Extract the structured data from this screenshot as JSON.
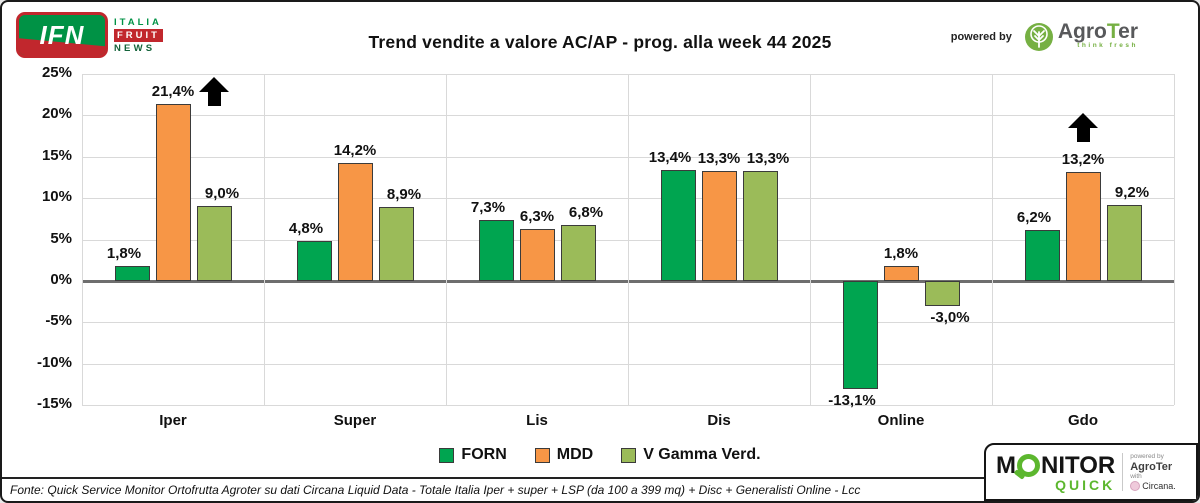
{
  "header": {
    "title": "Trend vendite a valore AC/AP - prog. alla week 44 2025",
    "ifn_logo": {
      "abbr": "IFN",
      "line1": "ITALIA",
      "line2": "FRUIT",
      "line3": "NEWS"
    },
    "powered_by": "powered by",
    "agroter": {
      "name_part1": "Agro",
      "name_t": "T",
      "name_part2": "er",
      "tagline": "think fresh",
      "icon": "tree-icon"
    }
  },
  "chart_data": {
    "type": "bar",
    "title": "Trend vendite a valore AC/AP - prog. alla week 44 2025",
    "categories": [
      "Iper",
      "Super",
      "Lis",
      "Dis",
      "Online",
      "Gdo"
    ],
    "series": [
      {
        "name": "FORN",
        "color": "#00A550",
        "values": [
          1.8,
          4.8,
          7.3,
          13.4,
          -13.1,
          6.2
        ]
      },
      {
        "name": "MDD",
        "color": "#F79646",
        "values": [
          21.4,
          14.2,
          6.3,
          13.3,
          1.8,
          13.2
        ]
      },
      {
        "name": "V Gamma Verd.",
        "color": "#9BBB59",
        "values": [
          9.0,
          8.9,
          6.8,
          13.3,
          -3.0,
          9.2
        ]
      }
    ],
    "value_labels": [
      [
        "1,8%",
        "21,4%",
        "9,0%"
      ],
      [
        "4,8%",
        "14,2%",
        "8,9%"
      ],
      [
        "7,3%",
        "6,3%",
        "6,8%"
      ],
      [
        "13,4%",
        "13,3%",
        "13,3%"
      ],
      [
        "-13,1%",
        "1,8%",
        "-3,0%"
      ],
      [
        "6,2%",
        "13,2%",
        "9,2%"
      ]
    ],
    "y_ticks": [
      "25%",
      "20%",
      "15%",
      "10%",
      "5%",
      "0%",
      "-5%",
      "-10%",
      "-15%"
    ],
    "ylim": [
      -15,
      25
    ],
    "grid": true,
    "legend_position": "bottom",
    "annotations": [
      {
        "type": "up-arrow",
        "category": "Iper",
        "series": "MDD",
        "placement": "right"
      },
      {
        "type": "up-arrow",
        "category": "Gdo",
        "series": "MDD",
        "placement": "above"
      }
    ],
    "colors": {
      "grid": "#d9d9d9",
      "zero_line": "#6e6e6e",
      "bar_border": "#3b3b3b"
    }
  },
  "footer": {
    "source": "Fonte: Quick Service Monitor Ortofrutta Agroter su dati Circana Liquid Data - Totale Italia Iper + super + LSP (da 100 a 399 mq) + Disc + Generalisti Online - Lcc"
  },
  "monitor_logo": {
    "word_start": "M",
    "word_end": "NITOR",
    "quick": "QUICK",
    "powered_by": "powered by",
    "agroter": "AgroTer",
    "with": "with",
    "circana": "Circana."
  }
}
